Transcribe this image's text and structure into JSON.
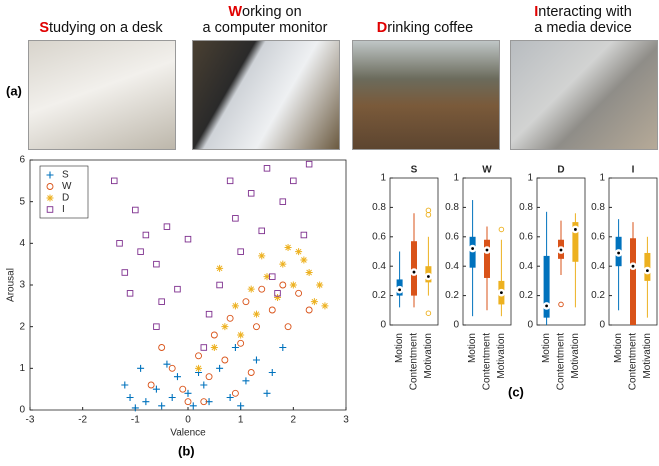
{
  "panel_labels": [
    "(a)",
    "(b)",
    "(c)"
  ],
  "photos": [
    {
      "lines": [
        "Studying on a desk"
      ]
    },
    {
      "lines": [
        "Working on",
        "a computer monitor"
      ]
    },
    {
      "lines": [
        "Drinking coffee"
      ]
    },
    {
      "lines": [
        "Interacting with",
        "a media device"
      ]
    }
  ],
  "chart_data": [
    {
      "type": "scatter",
      "xlabel": "Valence",
      "ylabel": "Arousal",
      "xlim": [
        -3,
        3
      ],
      "ylim": [
        0,
        6
      ],
      "xticks": [
        -3,
        -2,
        -1,
        0,
        1,
        2,
        3
      ],
      "yticks": [
        0,
        1,
        2,
        3,
        4,
        5,
        6
      ],
      "legend": "northwest",
      "grid": false,
      "series": [
        {
          "name": "S",
          "color": "#0072bd",
          "marker": "plus",
          "x": [
            -1.2,
            -1.1,
            -0.9,
            -0.8,
            -0.6,
            -0.5,
            -0.3,
            -0.2,
            0,
            0.1,
            0.3,
            0.4,
            0.6,
            0.8,
            0.9,
            1.1,
            1.3,
            1.5,
            1.6,
            1.8,
            -0.4,
            0.2,
            1.0,
            -1.0
          ],
          "values": [
            0.6,
            0.3,
            1.0,
            0.2,
            0.5,
            0.1,
            0.3,
            0.8,
            0.4,
            0.1,
            0.6,
            0.2,
            1.0,
            0.3,
            1.5,
            0.7,
            1.2,
            0.4,
            0.9,
            1.5,
            1.1,
            0.9,
            0.1,
            0.05
          ]
        },
        {
          "name": "W",
          "color": "#d95319",
          "marker": "circle",
          "x": [
            -0.5,
            -0.3,
            -0.1,
            0,
            0.2,
            0.4,
            0.5,
            0.7,
            0.8,
            1.0,
            1.1,
            1.3,
            1.4,
            1.6,
            1.8,
            1.9,
            2.1,
            2.3,
            0.3,
            -0.7,
            1.2,
            0.9
          ],
          "values": [
            1.5,
            1.0,
            0.5,
            0.2,
            1.3,
            0.8,
            1.8,
            1.2,
            2.2,
            1.6,
            2.6,
            2.0,
            2.9,
            2.4,
            3.0,
            2.0,
            2.8,
            2.4,
            0.2,
            0.6,
            0.9,
            0.4
          ]
        },
        {
          "name": "D",
          "color": "#edb120",
          "marker": "star",
          "x": [
            0.5,
            0.7,
            0.9,
            1.0,
            1.2,
            1.3,
            1.5,
            1.7,
            1.8,
            2.0,
            2.1,
            2.3,
            2.4,
            2.5,
            2.6,
            0.6,
            0.2,
            1.4,
            1.9,
            2.2
          ],
          "values": [
            1.5,
            2.0,
            2.5,
            1.8,
            2.9,
            2.3,
            3.2,
            2.7,
            3.5,
            3.0,
            3.8,
            3.3,
            2.6,
            3.0,
            2.5,
            3.4,
            1.0,
            3.7,
            3.9,
            3.6
          ]
        },
        {
          "name": "I",
          "color": "#7e2f8e",
          "marker": "square",
          "x": [
            -1.4,
            -1.3,
            -1.2,
            -1.0,
            -0.9,
            -0.8,
            -0.6,
            -0.5,
            -0.4,
            -0.2,
            0,
            -0.6,
            0.3,
            0.4,
            0.6,
            0.8,
            0.9,
            1.0,
            1.2,
            1.4,
            1.5,
            1.6,
            1.8,
            2.0,
            2.2,
            2.3,
            1.7,
            -1.1
          ],
          "values": [
            5.5,
            4.0,
            3.3,
            4.8,
            3.8,
            4.2,
            3.5,
            2.6,
            4.4,
            2.9,
            4.1,
            2.0,
            1.5,
            2.3,
            3.0,
            5.5,
            4.6,
            3.8,
            5.2,
            4.3,
            5.8,
            3.2,
            5.0,
            5.5,
            4.2,
            5.9,
            2.8,
            2.8
          ]
        }
      ]
    },
    {
      "type": "box",
      "title": "S",
      "ylim": [
        0,
        1
      ],
      "yticks": [
        0,
        0.2,
        0.4,
        0.6,
        0.8,
        1
      ],
      "categories": [
        "Motion",
        "Contentment",
        "Motivation"
      ],
      "colors": [
        "#0072bd",
        "#d95319",
        "#edb120"
      ],
      "boxes": [
        {
          "min": 0.12,
          "q1": 0.2,
          "median": 0.24,
          "q3": 0.31,
          "max": 0.5,
          "outliers": []
        },
        {
          "min": 0.12,
          "q1": 0.2,
          "median": 0.36,
          "q3": 0.57,
          "max": 0.76,
          "outliers": []
        },
        {
          "min": 0.2,
          "q1": 0.29,
          "median": 0.33,
          "q3": 0.4,
          "max": 0.6,
          "outliers": [
            0.78,
            0.75,
            0.08
          ]
        }
      ]
    },
    {
      "type": "box",
      "title": "W",
      "ylim": [
        0,
        1
      ],
      "yticks": [
        0,
        0.2,
        0.4,
        0.6,
        0.8,
        1
      ],
      "categories": [
        "Motion",
        "Contentment",
        "Motivation"
      ],
      "colors": [
        "#0072bd",
        "#d95319",
        "#edb120"
      ],
      "boxes": [
        {
          "min": 0.06,
          "q1": 0.39,
          "median": 0.52,
          "q3": 0.6,
          "max": 0.85,
          "outliers": []
        },
        {
          "min": 0.1,
          "q1": 0.32,
          "median": 0.51,
          "q3": 0.58,
          "max": 0.67,
          "outliers": []
        },
        {
          "min": 0.06,
          "q1": 0.14,
          "median": 0.22,
          "q3": 0.3,
          "max": 0.58,
          "outliers": [
            0.65
          ]
        }
      ]
    },
    {
      "type": "box",
      "title": "D",
      "ylim": [
        0,
        1
      ],
      "yticks": [
        0,
        0.2,
        0.4,
        0.6,
        0.8,
        1
      ],
      "categories": [
        "Motion",
        "Contentment",
        "Motivation"
      ],
      "colors": [
        "#0072bd",
        "#d95319",
        "#edb120"
      ],
      "boxes": [
        {
          "min": 0,
          "q1": 0.05,
          "median": 0.13,
          "q3": 0.47,
          "max": 0.77,
          "outliers": []
        },
        {
          "min": 0.34,
          "q1": 0.45,
          "median": 0.51,
          "q3": 0.58,
          "max": 0.71,
          "outliers": [
            0.14
          ]
        },
        {
          "min": 0.12,
          "q1": 0.43,
          "median": 0.65,
          "q3": 0.7,
          "max": 0.76,
          "outliers": []
        }
      ]
    },
    {
      "type": "box",
      "title": "I",
      "ylim": [
        0,
        1
      ],
      "yticks": [
        0,
        0.2,
        0.4,
        0.6,
        0.8,
        1
      ],
      "categories": [
        "Motion",
        "Contentment",
        "Motivation"
      ],
      "colors": [
        "#0072bd",
        "#d95319",
        "#edb120"
      ],
      "boxes": [
        {
          "min": 0.1,
          "q1": 0.4,
          "median": 0.49,
          "q3": 0.6,
          "max": 0.72,
          "outliers": []
        },
        {
          "min": 0,
          "q1": 0,
          "median": 0.4,
          "q3": 0.59,
          "max": 0.7,
          "outliers": []
        },
        {
          "min": 0.05,
          "q1": 0.3,
          "median": 0.37,
          "q3": 0.49,
          "max": 0.6,
          "outliers": []
        }
      ]
    }
  ]
}
